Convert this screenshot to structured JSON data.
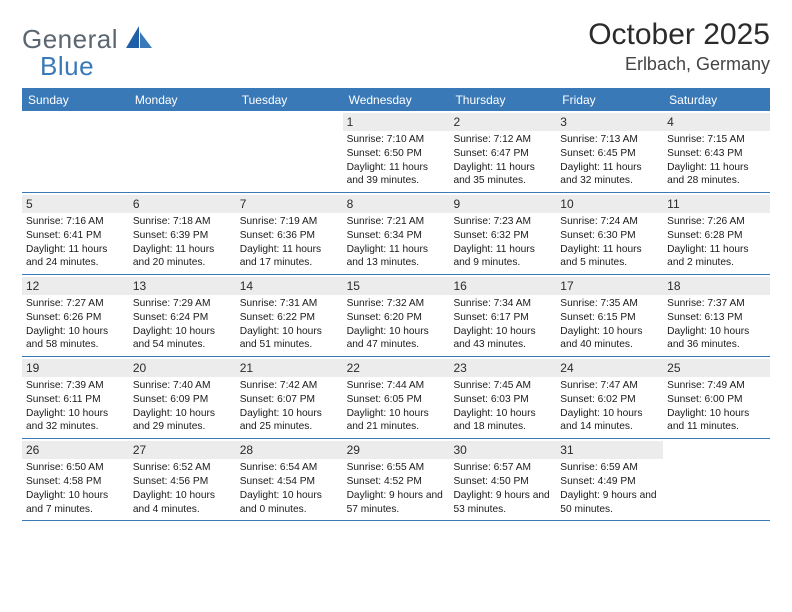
{
  "logo": {
    "text1": "General",
    "text2": "Blue"
  },
  "header": {
    "month_title": "October 2025",
    "location": "Erlbach, Germany"
  },
  "colors": {
    "header_bar": "#3a79b7",
    "daynum_bg": "#ececec",
    "logo_gray": "#5b6670",
    "logo_blue": "#3a79b7"
  },
  "days_of_week": [
    "Sunday",
    "Monday",
    "Tuesday",
    "Wednesday",
    "Thursday",
    "Friday",
    "Saturday"
  ],
  "weeks": [
    [
      {
        "empty": true
      },
      {
        "empty": true
      },
      {
        "empty": true
      },
      {
        "num": "1",
        "sunrise": "Sunrise: 7:10 AM",
        "sunset": "Sunset: 6:50 PM",
        "daylight": "Daylight: 11 hours and 39 minutes."
      },
      {
        "num": "2",
        "sunrise": "Sunrise: 7:12 AM",
        "sunset": "Sunset: 6:47 PM",
        "daylight": "Daylight: 11 hours and 35 minutes."
      },
      {
        "num": "3",
        "sunrise": "Sunrise: 7:13 AM",
        "sunset": "Sunset: 6:45 PM",
        "daylight": "Daylight: 11 hours and 32 minutes."
      },
      {
        "num": "4",
        "sunrise": "Sunrise: 7:15 AM",
        "sunset": "Sunset: 6:43 PM",
        "daylight": "Daylight: 11 hours and 28 minutes."
      }
    ],
    [
      {
        "num": "5",
        "sunrise": "Sunrise: 7:16 AM",
        "sunset": "Sunset: 6:41 PM",
        "daylight": "Daylight: 11 hours and 24 minutes."
      },
      {
        "num": "6",
        "sunrise": "Sunrise: 7:18 AM",
        "sunset": "Sunset: 6:39 PM",
        "daylight": "Daylight: 11 hours and 20 minutes."
      },
      {
        "num": "7",
        "sunrise": "Sunrise: 7:19 AM",
        "sunset": "Sunset: 6:36 PM",
        "daylight": "Daylight: 11 hours and 17 minutes."
      },
      {
        "num": "8",
        "sunrise": "Sunrise: 7:21 AM",
        "sunset": "Sunset: 6:34 PM",
        "daylight": "Daylight: 11 hours and 13 minutes."
      },
      {
        "num": "9",
        "sunrise": "Sunrise: 7:23 AM",
        "sunset": "Sunset: 6:32 PM",
        "daylight": "Daylight: 11 hours and 9 minutes."
      },
      {
        "num": "10",
        "sunrise": "Sunrise: 7:24 AM",
        "sunset": "Sunset: 6:30 PM",
        "daylight": "Daylight: 11 hours and 5 minutes."
      },
      {
        "num": "11",
        "sunrise": "Sunrise: 7:26 AM",
        "sunset": "Sunset: 6:28 PM",
        "daylight": "Daylight: 11 hours and 2 minutes."
      }
    ],
    [
      {
        "num": "12",
        "sunrise": "Sunrise: 7:27 AM",
        "sunset": "Sunset: 6:26 PM",
        "daylight": "Daylight: 10 hours and 58 minutes."
      },
      {
        "num": "13",
        "sunrise": "Sunrise: 7:29 AM",
        "sunset": "Sunset: 6:24 PM",
        "daylight": "Daylight: 10 hours and 54 minutes."
      },
      {
        "num": "14",
        "sunrise": "Sunrise: 7:31 AM",
        "sunset": "Sunset: 6:22 PM",
        "daylight": "Daylight: 10 hours and 51 minutes."
      },
      {
        "num": "15",
        "sunrise": "Sunrise: 7:32 AM",
        "sunset": "Sunset: 6:20 PM",
        "daylight": "Daylight: 10 hours and 47 minutes."
      },
      {
        "num": "16",
        "sunrise": "Sunrise: 7:34 AM",
        "sunset": "Sunset: 6:17 PM",
        "daylight": "Daylight: 10 hours and 43 minutes."
      },
      {
        "num": "17",
        "sunrise": "Sunrise: 7:35 AM",
        "sunset": "Sunset: 6:15 PM",
        "daylight": "Daylight: 10 hours and 40 minutes."
      },
      {
        "num": "18",
        "sunrise": "Sunrise: 7:37 AM",
        "sunset": "Sunset: 6:13 PM",
        "daylight": "Daylight: 10 hours and 36 minutes."
      }
    ],
    [
      {
        "num": "19",
        "sunrise": "Sunrise: 7:39 AM",
        "sunset": "Sunset: 6:11 PM",
        "daylight": "Daylight: 10 hours and 32 minutes."
      },
      {
        "num": "20",
        "sunrise": "Sunrise: 7:40 AM",
        "sunset": "Sunset: 6:09 PM",
        "daylight": "Daylight: 10 hours and 29 minutes."
      },
      {
        "num": "21",
        "sunrise": "Sunrise: 7:42 AM",
        "sunset": "Sunset: 6:07 PM",
        "daylight": "Daylight: 10 hours and 25 minutes."
      },
      {
        "num": "22",
        "sunrise": "Sunrise: 7:44 AM",
        "sunset": "Sunset: 6:05 PM",
        "daylight": "Daylight: 10 hours and 21 minutes."
      },
      {
        "num": "23",
        "sunrise": "Sunrise: 7:45 AM",
        "sunset": "Sunset: 6:03 PM",
        "daylight": "Daylight: 10 hours and 18 minutes."
      },
      {
        "num": "24",
        "sunrise": "Sunrise: 7:47 AM",
        "sunset": "Sunset: 6:02 PM",
        "daylight": "Daylight: 10 hours and 14 minutes."
      },
      {
        "num": "25",
        "sunrise": "Sunrise: 7:49 AM",
        "sunset": "Sunset: 6:00 PM",
        "daylight": "Daylight: 10 hours and 11 minutes."
      }
    ],
    [
      {
        "num": "26",
        "sunrise": "Sunrise: 6:50 AM",
        "sunset": "Sunset: 4:58 PM",
        "daylight": "Daylight: 10 hours and 7 minutes."
      },
      {
        "num": "27",
        "sunrise": "Sunrise: 6:52 AM",
        "sunset": "Sunset: 4:56 PM",
        "daylight": "Daylight: 10 hours and 4 minutes."
      },
      {
        "num": "28",
        "sunrise": "Sunrise: 6:54 AM",
        "sunset": "Sunset: 4:54 PM",
        "daylight": "Daylight: 10 hours and 0 minutes."
      },
      {
        "num": "29",
        "sunrise": "Sunrise: 6:55 AM",
        "sunset": "Sunset: 4:52 PM",
        "daylight": "Daylight: 9 hours and 57 minutes."
      },
      {
        "num": "30",
        "sunrise": "Sunrise: 6:57 AM",
        "sunset": "Sunset: 4:50 PM",
        "daylight": "Daylight: 9 hours and 53 minutes."
      },
      {
        "num": "31",
        "sunrise": "Sunrise: 6:59 AM",
        "sunset": "Sunset: 4:49 PM",
        "daylight": "Daylight: 9 hours and 50 minutes."
      },
      {
        "empty": true
      }
    ]
  ]
}
